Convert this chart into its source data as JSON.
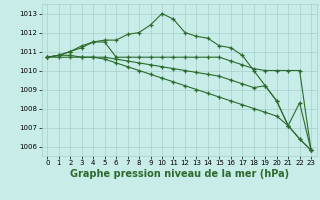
{
  "x": [
    0,
    1,
    2,
    3,
    4,
    5,
    6,
    7,
    8,
    9,
    10,
    11,
    12,
    13,
    14,
    15,
    16,
    17,
    18,
    19,
    20,
    21,
    22,
    23
  ],
  "series": [
    [
      1010.7,
      1010.8,
      1011.0,
      1011.3,
      1011.5,
      1011.6,
      1011.6,
      1011.9,
      1012.0,
      1012.4,
      1013.0,
      1012.7,
      1012.0,
      1011.8,
      1011.7,
      1011.3,
      1011.2,
      1010.8,
      1010.0,
      1009.2,
      1008.4,
      1007.1,
      1008.3,
      1005.8
    ],
    [
      1010.7,
      1010.8,
      1011.0,
      1011.2,
      1011.5,
      1011.5,
      1010.7,
      1010.7,
      1010.7,
      1010.7,
      1010.7,
      1010.7,
      1010.7,
      1010.7,
      1010.7,
      1010.7,
      1010.5,
      1010.3,
      1010.1,
      1010.0,
      1010.0,
      1010.0,
      1010.0,
      1005.8
    ],
    [
      1010.7,
      1010.8,
      1010.8,
      1010.7,
      1010.7,
      1010.7,
      1010.6,
      1010.5,
      1010.4,
      1010.3,
      1010.2,
      1010.1,
      1010.0,
      1009.9,
      1009.8,
      1009.7,
      1009.5,
      1009.3,
      1009.1,
      1009.2,
      1008.4,
      1007.1,
      1006.4,
      1005.8
    ],
    [
      1010.7,
      1010.7,
      1010.7,
      1010.7,
      1010.7,
      1010.6,
      1010.4,
      1010.2,
      1010.0,
      1009.8,
      1009.6,
      1009.4,
      1009.2,
      1009.0,
      1008.8,
      1008.6,
      1008.4,
      1008.2,
      1008.0,
      1007.8,
      1007.6,
      1007.1,
      1006.4,
      1005.8
    ]
  ],
  "line_color": "#2d6a2d",
  "marker": "+",
  "bg_color": "#c8ede8",
  "grid_color": "#a8d0cc",
  "xlabel": "Graphe pression niveau de la mer (hPa)",
  "ylim": [
    1005.5,
    1013.5
  ],
  "yticks": [
    1006,
    1007,
    1008,
    1009,
    1010,
    1011,
    1012,
    1013
  ],
  "xticks": [
    0,
    1,
    2,
    3,
    4,
    5,
    6,
    7,
    8,
    9,
    10,
    11,
    12,
    13,
    14,
    15,
    16,
    17,
    18,
    19,
    20,
    21,
    22,
    23
  ],
  "tick_fontsize": 5.0,
  "xlabel_fontsize": 7.0,
  "figsize": [
    3.2,
    2.0
  ],
  "dpi": 100
}
